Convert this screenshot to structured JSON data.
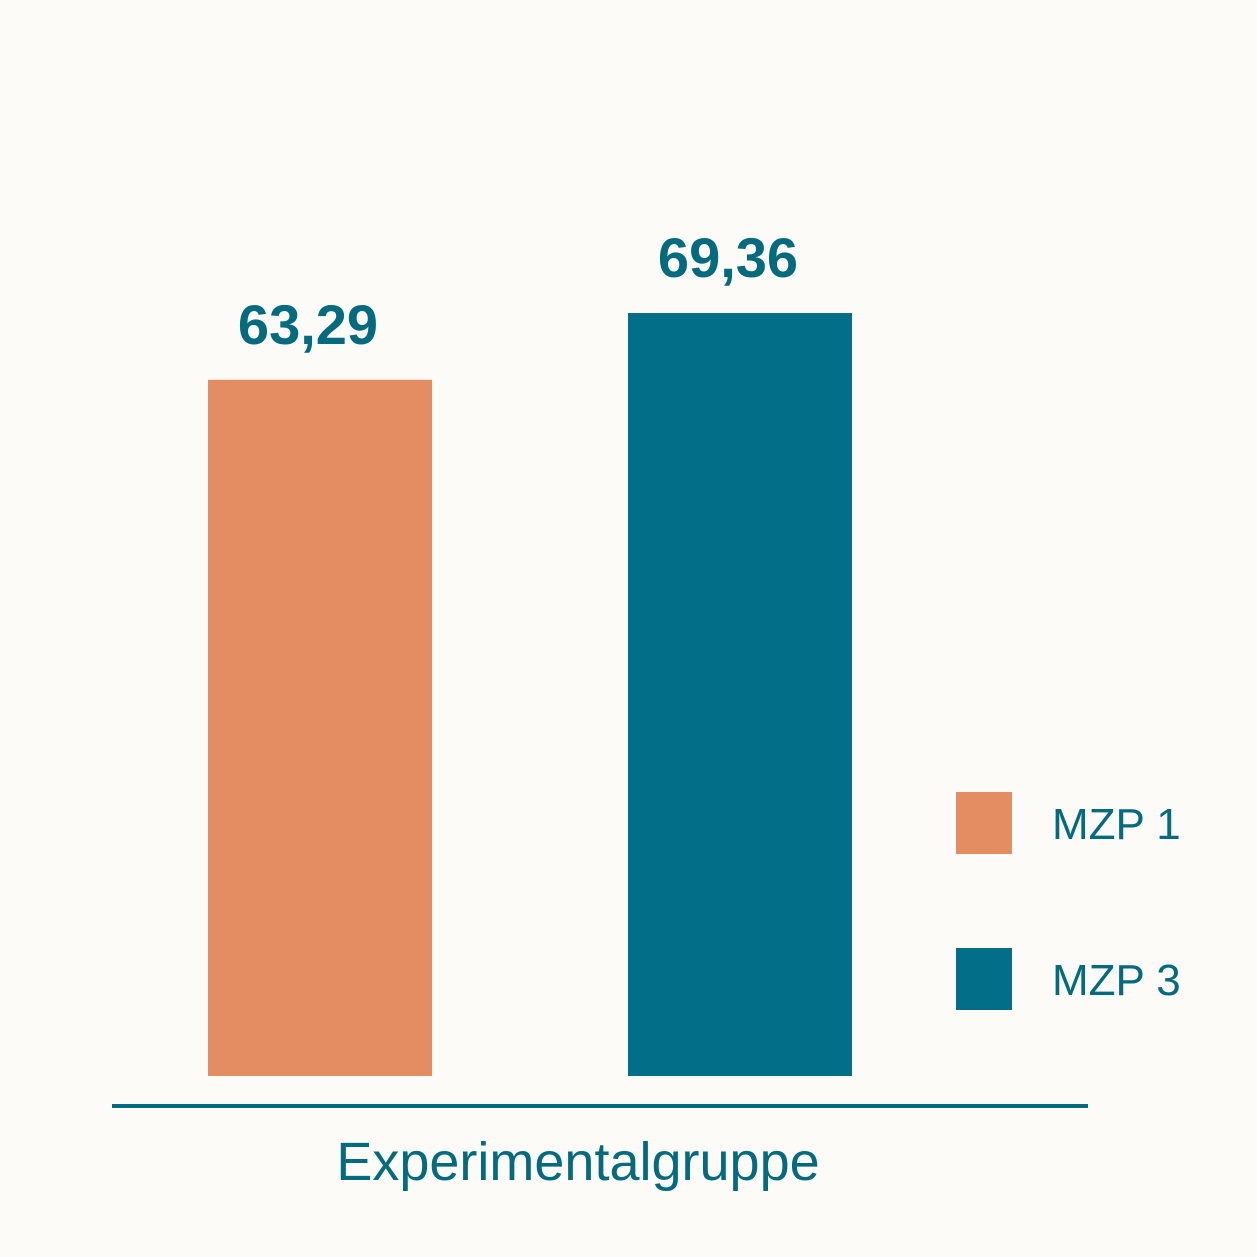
{
  "chart_data": {
    "type": "bar",
    "categories": [
      "Experimentalgruppe"
    ],
    "series": [
      {
        "name": "MZP 1",
        "values": [
          63.29
        ],
        "label": "63,29",
        "color": "#e48c62"
      },
      {
        "name": "MZP 3",
        "values": [
          69.36
        ],
        "label": "69,36",
        "color": "#026e88"
      }
    ],
    "title": "",
    "xlabel": "",
    "ylabel": "",
    "ylim": [
      0,
      70
    ],
    "grid": false,
    "legend": "right",
    "colors": {
      "text": "#046b7f",
      "axis": "#046b7f",
      "background": "#fcfbf7"
    }
  }
}
